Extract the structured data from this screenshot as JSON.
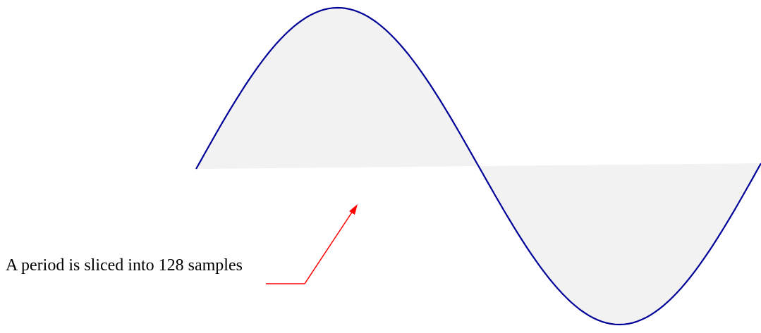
{
  "annotation": "A period is sliced into 128 samples"
}
